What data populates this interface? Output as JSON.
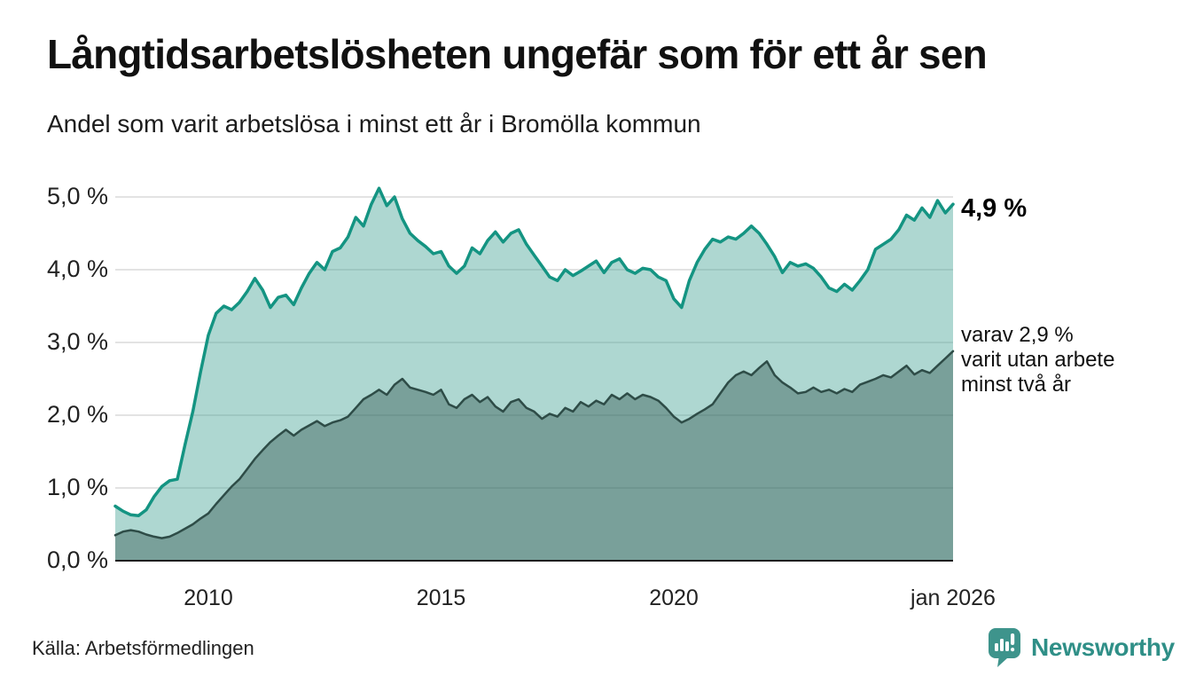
{
  "chart_data": {
    "type": "area",
    "title": "Långtidsarbetslösheten ungefär som för ett år sen",
    "subtitle": "Andel som varit arbetslösa i minst ett år i Bromölla kommun",
    "source": "Källa: Arbetsförmedlingen",
    "x_unit": "year",
    "x_start": 2008.0,
    "x_step": 0.1666667,
    "xlim": [
      2008,
      2026.0
    ],
    "ylim": [
      0,
      5.5
    ],
    "grid": true,
    "gridline_color": "#e3e3e3",
    "axis_line_color": "#1f1f1f",
    "y_ticks": [
      {
        "value": 0,
        "label": "0,0 %"
      },
      {
        "value": 1,
        "label": "1,0 %"
      },
      {
        "value": 2,
        "label": "2,0 %"
      },
      {
        "value": 3,
        "label": "3,0 %"
      },
      {
        "value": 4,
        "label": "4,0 %"
      },
      {
        "value": 5,
        "label": "5,0 %"
      }
    ],
    "x_ticks": [
      {
        "value": 2010,
        "label": "2010"
      },
      {
        "value": 2015,
        "label": "2015"
      },
      {
        "value": 2020,
        "label": "2020"
      },
      {
        "value": 2026,
        "label": "jan 2026"
      }
    ],
    "series": [
      {
        "name": "Andel som varit arbetslösa minst ett år",
        "line_color": "#149482",
        "fill_color": "rgba(62,160,145,0.42)",
        "values": [
          0.75,
          0.68,
          0.63,
          0.62,
          0.7,
          0.88,
          1.02,
          1.1,
          1.12,
          1.6,
          2.05,
          2.6,
          3.1,
          3.4,
          3.5,
          3.45,
          3.55,
          3.7,
          3.88,
          3.72,
          3.48,
          3.62,
          3.65,
          3.52,
          3.75,
          3.95,
          4.1,
          4.0,
          4.25,
          4.3,
          4.45,
          4.72,
          4.6,
          4.9,
          5.12,
          4.88,
          5.0,
          4.7,
          4.5,
          4.4,
          4.32,
          4.22,
          4.25,
          4.05,
          3.95,
          4.05,
          4.3,
          4.22,
          4.4,
          4.52,
          4.38,
          4.5,
          4.55,
          4.35,
          4.2,
          4.05,
          3.9,
          3.85,
          4.0,
          3.92,
          3.98,
          4.05,
          4.12,
          3.96,
          4.1,
          4.15,
          4.0,
          3.95,
          4.02,
          4.0,
          3.9,
          3.85,
          3.6,
          3.48,
          3.85,
          4.1,
          4.28,
          4.42,
          4.38,
          4.45,
          4.42,
          4.5,
          4.6,
          4.5,
          4.35,
          4.18,
          3.96,
          4.1,
          4.05,
          4.08,
          4.02,
          3.9,
          3.75,
          3.7,
          3.8,
          3.72,
          3.85,
          4.0,
          4.28,
          4.35,
          4.42,
          4.55,
          4.75,
          4.68,
          4.85,
          4.72,
          4.95,
          4.78,
          4.9
        ]
      },
      {
        "name": "varav utan arbete minst två år",
        "line_color": "#2E4C47",
        "fill_color": "rgba(35,70,65,0.38)",
        "values": [
          0.35,
          0.4,
          0.42,
          0.4,
          0.36,
          0.33,
          0.31,
          0.33,
          0.38,
          0.44,
          0.5,
          0.58,
          0.65,
          0.78,
          0.9,
          1.02,
          1.12,
          1.26,
          1.4,
          1.52,
          1.63,
          1.72,
          1.8,
          1.72,
          1.8,
          1.86,
          1.92,
          1.85,
          1.9,
          1.93,
          1.98,
          2.1,
          2.22,
          2.28,
          2.35,
          2.28,
          2.42,
          2.5,
          2.38,
          2.35,
          2.32,
          2.28,
          2.35,
          2.15,
          2.1,
          2.22,
          2.28,
          2.18,
          2.25,
          2.12,
          2.05,
          2.18,
          2.22,
          2.1,
          2.05,
          1.95,
          2.02,
          1.98,
          2.1,
          2.05,
          2.18,
          2.12,
          2.2,
          2.15,
          2.28,
          2.22,
          2.3,
          2.22,
          2.28,
          2.25,
          2.2,
          2.1,
          1.98,
          1.9,
          1.95,
          2.02,
          2.08,
          2.15,
          2.3,
          2.45,
          2.55,
          2.6,
          2.55,
          2.65,
          2.74,
          2.55,
          2.45,
          2.38,
          2.3,
          2.32,
          2.38,
          2.32,
          2.35,
          2.3,
          2.36,
          2.32,
          2.42,
          2.46,
          2.5,
          2.55,
          2.52,
          2.6,
          2.68,
          2.56,
          2.62,
          2.58,
          2.68,
          2.78,
          2.88
        ]
      }
    ],
    "annotations": {
      "latest_total_label": "4,9 %",
      "latest_subset_lines": [
        "varav 2,9 %",
        "varit utan arbete",
        "minst två år"
      ]
    }
  },
  "branding": {
    "logo_text": "Newsworthy",
    "logo_color": "#2F8F87",
    "icon_color": "#3E948C",
    "icon_name": "newsworthy-speech-bubble-bar-chart"
  }
}
